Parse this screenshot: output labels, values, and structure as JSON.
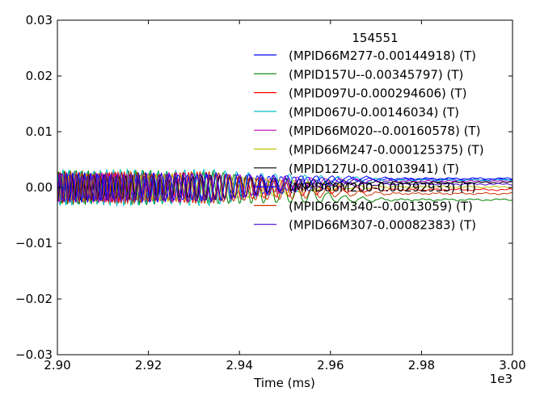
{
  "chart_data": {
    "type": "line",
    "title": "",
    "xlabel": "Time (ms)",
    "ylabel": "",
    "x_offset_label": "1e3",
    "xlim": [
      2.9,
      3.0
    ],
    "ylim": [
      -0.03,
      0.03
    ],
    "x_ticks": [
      2.9,
      2.92,
      2.94,
      2.96,
      2.98,
      3.0
    ],
    "x_tick_labels": [
      "2.90",
      "2.92",
      "2.94",
      "2.96",
      "2.98",
      "3.00"
    ],
    "y_ticks": [
      -0.03,
      -0.02,
      -0.01,
      0.0,
      0.01,
      0.02,
      0.03
    ],
    "y_tick_labels": [
      "−0.03",
      "−0.02",
      "−0.01",
      "0.00",
      "0.01",
      "0.02",
      "0.03"
    ],
    "grid": false,
    "legend": {
      "title": "154551",
      "placement": "top-right"
    },
    "series": [
      {
        "name": "(MPID66M277-0.00144918) (T)",
        "color": "#0000ff",
        "amplitude": 0.0022,
        "start_period": 0.0012,
        "end_period": 0.006,
        "final_level": 0.0014
      },
      {
        "name": "(MPID157U--0.00345797) (T)",
        "color": "#008000",
        "amplitude": 0.0028,
        "start_period": 0.0013,
        "end_period": 0.0065,
        "final_level": -0.0022
      },
      {
        "name": "(MPID097U-0.000294606) (T)",
        "color": "#ff0000",
        "amplitude": 0.0025,
        "start_period": 0.0012,
        "end_period": 0.0062,
        "final_level": -0.0004
      },
      {
        "name": "(MPID067U-0.00146034) (T)",
        "color": "#00bfbf",
        "amplitude": 0.003,
        "start_period": 0.0013,
        "end_period": 0.007,
        "final_level": 0.0013
      },
      {
        "name": "(MPID66M020--0.00160578) (T)",
        "color": "#bf00bf",
        "amplitude": 0.0024,
        "start_period": 0.0012,
        "end_period": 0.0058,
        "final_level": 0.0011
      },
      {
        "name": "(MPID66M247-0.000125375) (T)",
        "color": "#bfbf00",
        "amplitude": 0.0022,
        "start_period": 0.0013,
        "end_period": 0.0066,
        "final_level": 0.0001
      },
      {
        "name": "(MPID127U-0.00103941) (T)",
        "color": "#000000",
        "amplitude": 0.002,
        "start_period": 0.0012,
        "end_period": 0.006,
        "final_level": 0.0009
      },
      {
        "name": "(MPID66M200-0.00292933) (T)",
        "color": "#0000ff",
        "amplitude": 0.0024,
        "start_period": 0.0013,
        "end_period": 0.0064,
        "final_level": 0.0016
      },
      {
        "name": "(MPID66M340--0.0013059) (T)",
        "color": "#cc3300",
        "amplitude": 0.0026,
        "start_period": 0.0012,
        "end_period": 0.0061,
        "final_level": -0.0011
      },
      {
        "name": "(MPID66M307-0.00082383) (T)",
        "color": "#4400cc",
        "amplitude": 0.0022,
        "start_period": 0.0012,
        "end_period": 0.0063,
        "final_level": 0.0006
      }
    ]
  }
}
